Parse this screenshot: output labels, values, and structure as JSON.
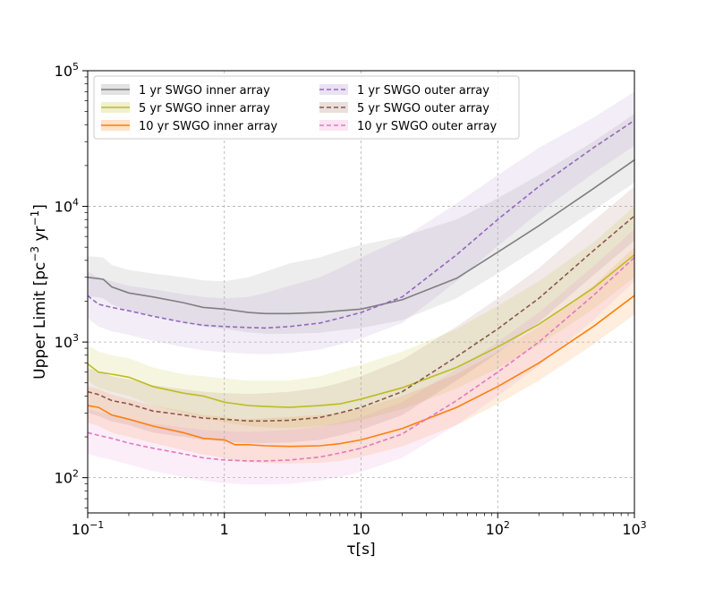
{
  "chart_data": {
    "type": "line",
    "title": "",
    "xlabel": "τ[s]",
    "ylabel": "Upper Limit [pc",
    "ylabel_parts": [
      "Upper Limit [pc",
      "−3",
      " yr",
      "−1",
      "]"
    ],
    "xscale": "log",
    "yscale": "log",
    "xlim": [
      0.1,
      1000
    ],
    "ylim": [
      55,
      100000
    ],
    "grid": true,
    "legend_position": "upper-left",
    "x_ticks": [
      {
        "value": 0.1,
        "base": "10",
        "exp": "−1"
      },
      {
        "value": 1,
        "label": "1"
      },
      {
        "value": 10,
        "label": "10"
      },
      {
        "value": 100,
        "base": "10",
        "exp": "2"
      },
      {
        "value": 1000,
        "base": "10",
        "exp": "3"
      }
    ],
    "y_ticks": [
      {
        "value": 100,
        "base": "10",
        "exp": "2"
      },
      {
        "value": 1000,
        "base": "10",
        "exp": "3"
      },
      {
        "value": 10000,
        "base": "10",
        "exp": "4"
      },
      {
        "value": 100000,
        "base": "10",
        "exp": "5"
      }
    ],
    "series": [
      {
        "name": "1 yr SWGO inner array",
        "color": "#7f7f7f",
        "dash": "solid",
        "band_opacity": 0.14,
        "x": [
          0.1,
          0.13,
          0.15,
          0.2,
          0.3,
          0.5,
          0.7,
          1,
          1.5,
          2,
          3,
          5,
          7,
          10,
          20,
          50,
          100,
          200,
          500,
          1000
        ],
        "y": [
          3000,
          2900,
          2550,
          2300,
          2150,
          1950,
          1800,
          1750,
          1650,
          1620,
          1620,
          1650,
          1700,
          1750,
          2050,
          2950,
          4600,
          7200,
          13500,
          22000
        ],
        "lower": [
          2200,
          2100,
          1900,
          1700,
          1550,
          1400,
          1300,
          1250,
          1180,
          1150,
          1150,
          1170,
          1220,
          1270,
          1450,
          2100,
          3200,
          5000,
          9300,
          15000
        ],
        "upper": [
          4300,
          4200,
          3700,
          3400,
          3200,
          3000,
          2850,
          2800,
          3000,
          3300,
          3800,
          4200,
          4700,
          5200,
          6000,
          8000,
          11500,
          17000,
          30000,
          48000
        ]
      },
      {
        "name": "5 yr SWGO inner array",
        "color": "#bcbd22",
        "dash": "solid",
        "band_opacity": 0.14,
        "x": [
          0.1,
          0.12,
          0.15,
          0.2,
          0.3,
          0.5,
          0.7,
          1,
          1.5,
          2,
          3,
          5,
          7,
          10,
          20,
          50,
          100,
          200,
          500,
          1000
        ],
        "y": [
          690,
          600,
          580,
          550,
          470,
          420,
          400,
          360,
          340,
          335,
          330,
          340,
          350,
          380,
          460,
          650,
          920,
          1350,
          2500,
          4400
        ],
        "lower": [
          520,
          460,
          430,
          400,
          340,
          300,
          280,
          255,
          240,
          235,
          232,
          240,
          248,
          265,
          320,
          455,
          640,
          950,
          1750,
          3000
        ],
        "upper": [
          950,
          850,
          800,
          760,
          650,
          580,
          560,
          540,
          520,
          520,
          520,
          560,
          620,
          680,
          850,
          1250,
          1850,
          2800,
          5400,
          10000
        ]
      },
      {
        "name": "10 yr SWGO inner array",
        "color": "#ff7f0e",
        "dash": "solid",
        "band_opacity": 0.14,
        "x": [
          0.1,
          0.12,
          0.15,
          0.2,
          0.3,
          0.5,
          0.7,
          1,
          1.2,
          1.5,
          2,
          3,
          5,
          7,
          10,
          20,
          50,
          100,
          200,
          500,
          1000
        ],
        "y": [
          340,
          330,
          290,
          270,
          240,
          215,
          195,
          190,
          175,
          175,
          172,
          170,
          172,
          178,
          190,
          230,
          330,
          470,
          700,
          1300,
          2200
        ],
        "lower": [
          255,
          240,
          215,
          200,
          180,
          160,
          148,
          140,
          132,
          130,
          128,
          127,
          129,
          133,
          142,
          170,
          245,
          350,
          520,
          960,
          1600
        ],
        "upper": [
          470,
          450,
          410,
          380,
          340,
          310,
          290,
          280,
          270,
          270,
          275,
          280,
          290,
          300,
          325,
          400,
          580,
          850,
          1300,
          2600,
          5000
        ]
      },
      {
        "name": "1 yr SWGO outer array",
        "color": "#9467bd",
        "dash": "dashed",
        "band_opacity": 0.12,
        "x": [
          0.1,
          0.12,
          0.15,
          0.2,
          0.3,
          0.5,
          0.7,
          1,
          1.5,
          2,
          3,
          5,
          7,
          10,
          20,
          50,
          100,
          200,
          500,
          1000
        ],
        "y": [
          2200,
          1900,
          1800,
          1700,
          1550,
          1400,
          1330,
          1300,
          1280,
          1270,
          1300,
          1380,
          1500,
          1650,
          2150,
          4400,
          8000,
          14000,
          27000,
          43000
        ],
        "lower": [
          1500,
          1300,
          1200,
          1130,
          1020,
          920,
          870,
          840,
          820,
          815,
          830,
          880,
          960,
          1060,
          1380,
          2800,
          5100,
          9000,
          17500,
          28000
        ],
        "upper": [
          3300,
          3000,
          2800,
          2600,
          2450,
          2250,
          2150,
          2100,
          2150,
          2300,
          2600,
          3000,
          3500,
          4200,
          5800,
          10500,
          17000,
          27000,
          45000,
          70000
        ]
      },
      {
        "name": "5 yr SWGO outer array",
        "color": "#8c564b",
        "dash": "dashed",
        "band_opacity": 0.12,
        "x": [
          0.1,
          0.12,
          0.15,
          0.2,
          0.3,
          0.5,
          0.7,
          1,
          1.5,
          2,
          3,
          5,
          7,
          10,
          20,
          50,
          100,
          200,
          500,
          1000
        ],
        "y": [
          430,
          410,
          370,
          350,
          310,
          290,
          275,
          270,
          262,
          262,
          265,
          278,
          300,
          330,
          430,
          780,
          1250,
          2100,
          4700,
          8500
        ],
        "lower": [
          300,
          285,
          260,
          245,
          215,
          200,
          190,
          185,
          180,
          180,
          182,
          190,
          205,
          225,
          290,
          520,
          830,
          1400,
          3100,
          5600
        ],
        "upper": [
          640,
          610,
          560,
          530,
          480,
          450,
          430,
          420,
          415,
          420,
          430,
          460,
          500,
          560,
          740,
          1300,
          2100,
          3500,
          7800,
          14000
        ]
      },
      {
        "name": "10 yr SWGO outer array",
        "color": "#e377c2",
        "dash": "dashed",
        "band_opacity": 0.12,
        "x": [
          0.1,
          0.12,
          0.15,
          0.2,
          0.3,
          0.5,
          0.7,
          1,
          1.5,
          2,
          3,
          5,
          7,
          10,
          20,
          50,
          100,
          200,
          500,
          1000
        ],
        "y": [
          215,
          205,
          195,
          180,
          165,
          150,
          140,
          135,
          133,
          133,
          135,
          142,
          152,
          165,
          210,
          370,
          600,
          1000,
          2200,
          4200
        ],
        "lower": [
          150,
          142,
          135,
          125,
          112,
          101,
          95,
          91,
          89,
          89,
          90,
          95,
          101,
          110,
          140,
          245,
          400,
          670,
          1450,
          2800
        ],
        "upper": [
          320,
          305,
          290,
          270,
          250,
          235,
          225,
          220,
          218,
          220,
          225,
          238,
          255,
          280,
          360,
          630,
          1000,
          1650,
          3600,
          6800
        ]
      }
    ]
  }
}
